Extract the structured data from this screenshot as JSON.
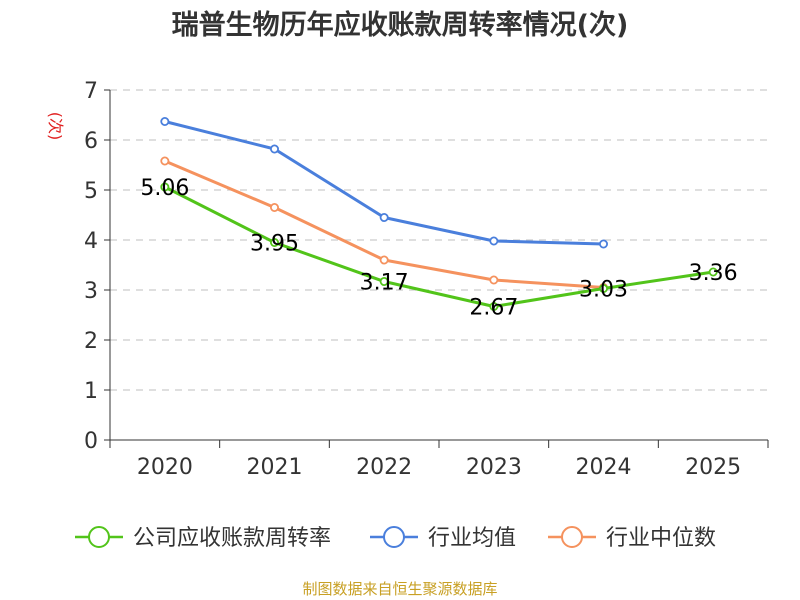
{
  "chart_data": {
    "type": "line",
    "title": "瑞普生物历年应收账款周转率情况(次)",
    "ylabel": "(次)",
    "ylim": [
      0,
      7
    ],
    "yticks": [
      "0",
      "1",
      "2",
      "3",
      "4",
      "5",
      "6",
      "7"
    ],
    "categories": [
      "2020",
      "2021",
      "2022",
      "2023",
      "2024",
      "2025"
    ],
    "series": [
      {
        "name": "公司应收账款周转率",
        "color": "#52c41a",
        "values": [
          5.06,
          3.95,
          3.17,
          2.67,
          3.03,
          3.36
        ],
        "labels": [
          "5.06",
          "3.95",
          "3.17",
          "2.67",
          "3.03",
          "3.36"
        ]
      },
      {
        "name": "行业均值",
        "color": "#4a7fdc",
        "values": [
          6.37,
          5.82,
          4.45,
          3.98,
          3.92,
          null
        ]
      },
      {
        "name": "行业中位数",
        "color": "#f5925e",
        "values": [
          5.58,
          4.65,
          3.6,
          3.2,
          3.05,
          null
        ]
      }
    ],
    "grid": true,
    "legend": "bottom"
  },
  "source": "制图数据来自恒生聚源数据库"
}
